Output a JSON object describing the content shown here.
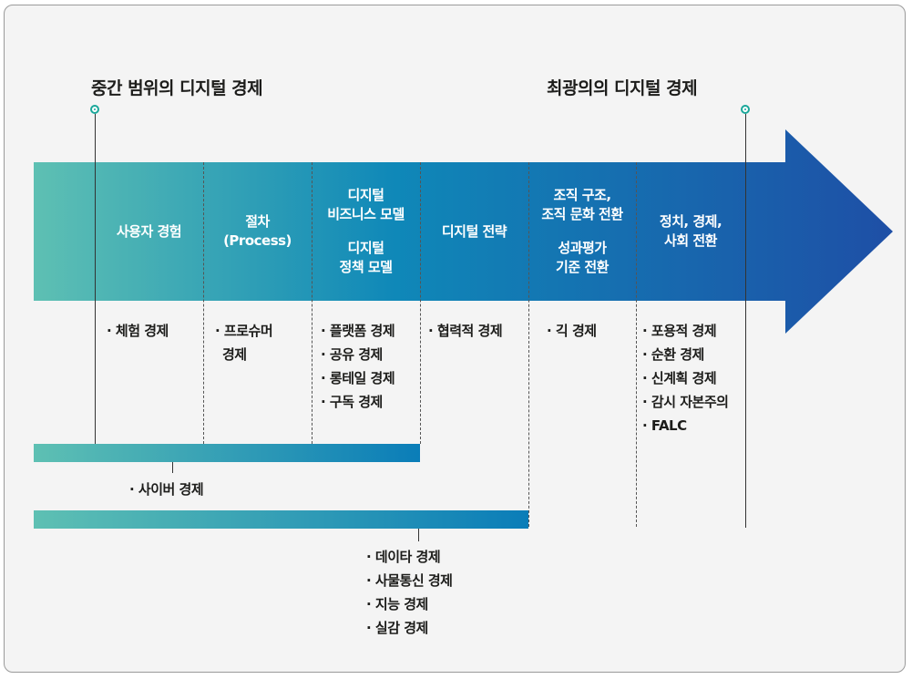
{
  "headers": {
    "left": "중간 범위의 디지털 경제",
    "right": "최광의의 디지털 경제"
  },
  "columns": [
    {
      "title": [
        "사용자 경험"
      ],
      "items": [
        "· 체험 경제"
      ]
    },
    {
      "title": [
        "절차",
        "(Process)"
      ],
      "items": [
        "· 프로슈머",
        "  경제"
      ]
    },
    {
      "title": [
        "디지털",
        "비즈니스 모델",
        "",
        "디지털",
        "정책 모델"
      ],
      "items": [
        "· 플랫폼 경제",
        "· 공유 경제",
        "· 롱테일 경제",
        "· 구독 경제"
      ]
    },
    {
      "title": [
        "디지털 전략"
      ],
      "items": [
        "· 협력적 경제"
      ]
    },
    {
      "title": [
        "조직 구조,",
        "조직 문화 전환",
        "",
        "성과평가",
        "기준 전환"
      ],
      "items": [
        "· 긱 경제"
      ]
    },
    {
      "title": [
        "정치, 경제,",
        "사회 전환"
      ],
      "items": [
        "· 포용적 경제",
        "· 순환 경제",
        "· 신계획 경제",
        "· 감시 자본주의",
        "· FALC"
      ]
    }
  ],
  "bars": {
    "cyber": "· 사이버 경제",
    "data": [
      "· 데이타 경제",
      "· 사물통신 경제",
      "· 지능 경제",
      "· 실감 경제"
    ]
  },
  "colors": {
    "teal": "#5ec0b3",
    "blue": "#1e5eac",
    "accent": "#1aa79a"
  }
}
